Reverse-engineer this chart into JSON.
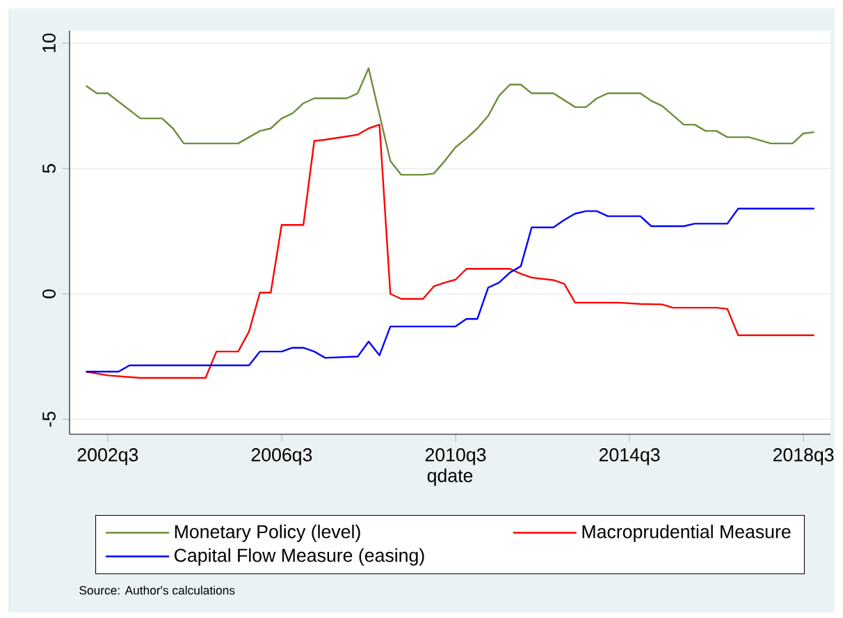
{
  "chart_data": {
    "type": "line",
    "xlabel": "qdate",
    "annotations": [
      "Source: Author's calculations"
    ],
    "xlim": [
      "2001-08-15",
      "2019-02-15"
    ],
    "ylim": [
      -5.6,
      10.5
    ],
    "xticks": [
      {
        "value": "2002-07",
        "label": "2002q3"
      },
      {
        "value": "2006-07",
        "label": "2006q3"
      },
      {
        "value": "2010-07",
        "label": "2010q3"
      },
      {
        "value": "2014-07",
        "label": "2014q3"
      },
      {
        "value": "2018-07",
        "label": "2018q3"
      }
    ],
    "yticks": [
      -5,
      0,
      5,
      10
    ],
    "grid": "y",
    "legend": "bottom",
    "marker": "none",
    "line_style": "solid",
    "series": [
      {
        "name": "Monetary Policy (level)",
        "color": "#6b8e3a",
        "x": [
          "2002-01",
          "2002-04",
          "2002-07",
          "2003-04",
          "2003-10",
          "2004-01",
          "2004-04",
          "2005-07",
          "2006-01",
          "2006-04",
          "2006-07",
          "2006-10",
          "2007-01",
          "2007-04",
          "2008-01",
          "2008-04",
          "2008-07",
          "2009-01",
          "2009-04",
          "2009-10",
          "2010-01",
          "2010-04",
          "2010-07",
          "2010-10",
          "2011-01",
          "2011-04",
          "2011-07",
          "2011-10",
          "2012-01",
          "2012-04",
          "2012-10",
          "2013-04",
          "2013-07",
          "2013-10",
          "2014-01",
          "2014-10",
          "2015-01",
          "2015-04",
          "2015-10",
          "2016-01",
          "2016-04",
          "2016-07",
          "2016-10",
          "2017-04",
          "2017-10",
          "2018-04",
          "2018-07",
          "2018-10"
        ],
        "values": [
          8.3,
          8.0,
          8.0,
          7.0,
          7.0,
          6.6,
          6.0,
          6.0,
          6.5,
          6.6,
          7.0,
          7.2,
          7.6,
          7.8,
          7.8,
          8.0,
          9.0,
          5.3,
          4.75,
          4.75,
          4.8,
          5.3,
          5.85,
          6.2,
          6.6,
          7.1,
          7.9,
          8.35,
          8.35,
          8.0,
          8.0,
          7.45,
          7.45,
          7.8,
          8.0,
          8.0,
          7.7,
          7.5,
          6.75,
          6.75,
          6.5,
          6.5,
          6.25,
          6.25,
          6.0,
          6.0,
          6.4,
          6.45
        ]
      },
      {
        "name": "Macroprudential Measure",
        "color": "#ff0000",
        "x": [
          "2002-01",
          "2002-07",
          "2003-04",
          "2004-10",
          "2005-01",
          "2005-07",
          "2005-10",
          "2006-01",
          "2006-04",
          "2006-07",
          "2007-01",
          "2007-04",
          "2007-07",
          "2008-04",
          "2008-07",
          "2008-10",
          "2009-01",
          "2009-04",
          "2009-10",
          "2010-01",
          "2010-04",
          "2010-07",
          "2010-10",
          "2011-10",
          "2012-01",
          "2012-04",
          "2012-10",
          "2013-01",
          "2013-04",
          "2014-04",
          "2014-10",
          "2015-04",
          "2015-07",
          "2016-07",
          "2016-10",
          "2017-01",
          "2018-10"
        ],
        "values": [
          -3.1,
          -3.25,
          -3.35,
          -3.35,
          -2.3,
          -2.3,
          -1.5,
          0.05,
          0.05,
          2.75,
          2.75,
          6.1,
          6.15,
          6.35,
          6.6,
          6.75,
          0.0,
          -0.2,
          -0.2,
          0.3,
          0.45,
          0.57,
          1.0,
          1.0,
          0.8,
          0.65,
          0.55,
          0.4,
          -0.35,
          -0.35,
          -0.4,
          -0.42,
          -0.55,
          -0.55,
          -0.6,
          -1.65,
          -1.65
        ]
      },
      {
        "name": "Capital Flow Measure (easing)",
        "color": "#0000ff",
        "x": [
          "2002-01",
          "2002-10",
          "2003-01",
          "2005-10",
          "2006-01",
          "2006-07",
          "2006-10",
          "2007-01",
          "2007-04",
          "2007-07",
          "2008-04",
          "2008-07",
          "2008-10",
          "2009-01",
          "2010-07",
          "2010-10",
          "2011-01",
          "2011-04",
          "2011-07",
          "2011-10",
          "2012-01",
          "2012-04",
          "2012-10",
          "2013-01",
          "2013-04",
          "2013-07",
          "2013-10",
          "2014-01",
          "2014-10",
          "2015-01",
          "2015-10",
          "2016-01",
          "2016-10",
          "2017-01",
          "2018-10"
        ],
        "values": [
          -3.1,
          -3.1,
          -2.85,
          -2.85,
          -2.3,
          -2.3,
          -2.15,
          -2.15,
          -2.3,
          -2.55,
          -2.5,
          -1.9,
          -2.45,
          -1.3,
          -1.3,
          -1.0,
          -1.0,
          0.25,
          0.45,
          0.85,
          1.1,
          2.65,
          2.65,
          2.95,
          3.2,
          3.3,
          3.3,
          3.1,
          3.1,
          2.7,
          2.7,
          2.8,
          2.8,
          3.4,
          3.4
        ]
      }
    ]
  }
}
